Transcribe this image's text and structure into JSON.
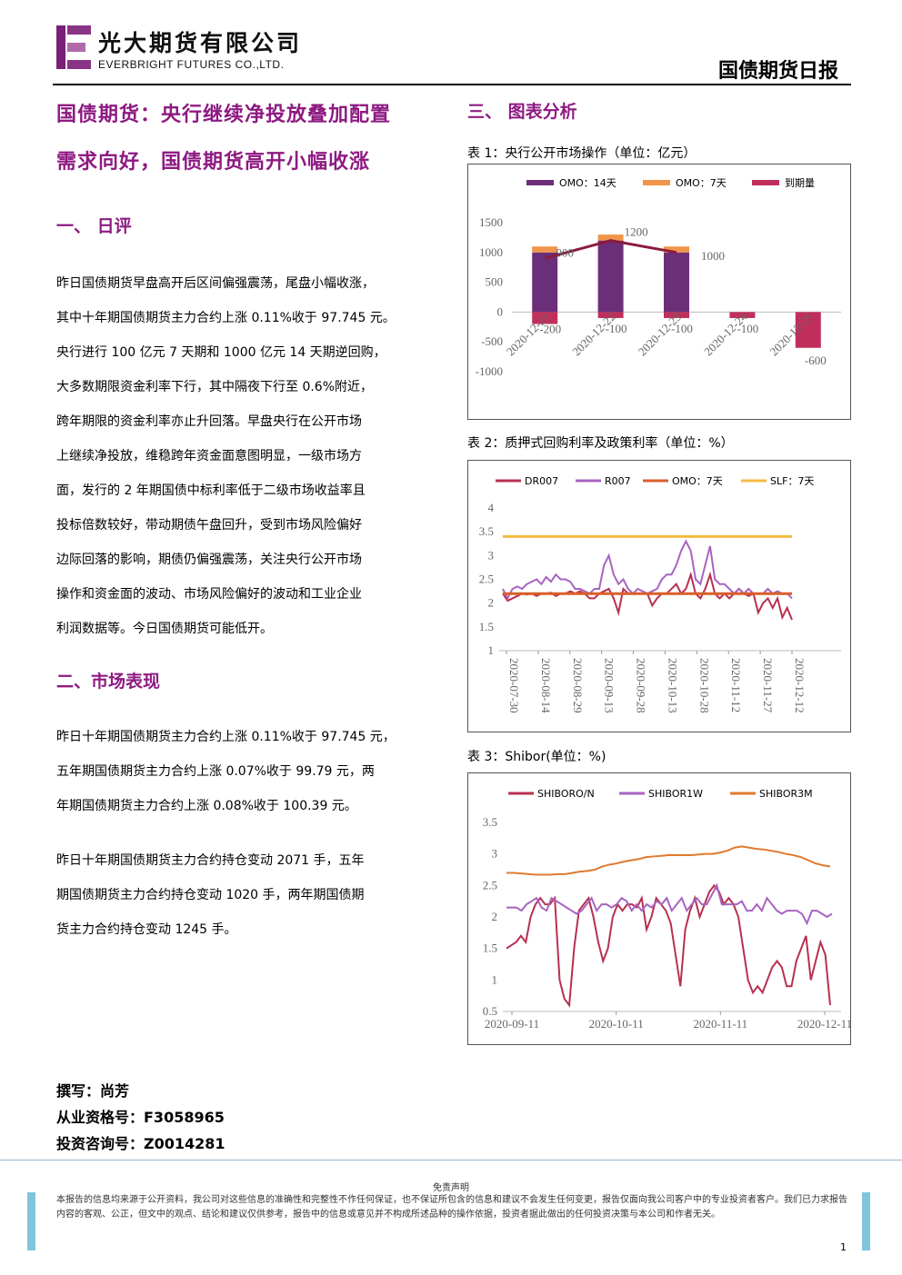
{
  "header": {
    "company_cn": "光大期货有限公司",
    "company_en": "EVERBRIGHT FUTURES CO.,LTD.",
    "report_title": "国债期货日报"
  },
  "headline": {
    "line1": "国债期货：央行继续净投放叠加配置",
    "line2": "需求向好，国债期货高开小幅收涨"
  },
  "section1": {
    "title": "一、   日评",
    "lines": [
      "昨日国债期货早盘高开后区间偏强震荡，尾盘小幅收涨，",
      "其中十年期国债期货主力合约上涨 0.11%收于 97.745 元。",
      "央行进行 100 亿元 7 天期和 1000 亿元 14 天期逆回购，",
      "大多数期限资金利率下行，其中隔夜下行至 0.6%附近，",
      "跨年期限的资金利率亦止升回落。早盘央行在公开市场",
      "上继续净投放，维稳跨年资金面意图明显，一级市场方",
      "面，发行的 2 年期国债中标利率低于二级市场收益率且",
      "投标倍数较好，带动期债午盘回升，受到市场风险偏好",
      "边际回落的影响，期债仍偏强震荡，关注央行公开市场",
      "操作和资金面的波动、市场风险偏好的波动和工业企业",
      "利润数据等。今日国债期货可能低开。"
    ]
  },
  "section2": {
    "title": "二、市场表现",
    "para1": [
      "昨日十年期国债期货主力合约上涨 0.11%收于 97.745 元，",
      "五年期国债期货主力合约上涨 0.07%收于 99.79 元，两",
      "年期国债期货主力合约上涨 0.08%收于 100.39 元。"
    ],
    "para2": [
      "昨日十年期国债期货主力合约持仓变动 2071 手，五年",
      "期国债期货主力合约持仓变动 1020 手，两年期国债期",
      "货主力合约持仓变动 1245 手。"
    ]
  },
  "section3": {
    "title": "三、   图表分析"
  },
  "captions": {
    "c1": "表 1：央行公开市场操作（单位：亿元）",
    "c2": "表 2：质押式回购利率及政策利率（单位：%）",
    "c3": "表 3：Shibor(单位：%)"
  },
  "authors": {
    "writer": "撰写：尚芳",
    "qual": "从业资格号：F3058965",
    "consult": "投资咨询号：Z0014281"
  },
  "footer": {
    "disclaimer_title": "免责声明",
    "disclaimer_text": "本报告的信息均来源于公开资料，我公司对这些信息的准确性和完整性不作任何保证，也不保证所包含的信息和建议不会发生任何变更，报告仅面向我公司客户中的专业投资者客户。我们已力求报告内容的客观、公正，但文中的观点、结论和建议仅供参考，报告中的信息或意见并不构成所述品种的操作依据，投资者据此做出的任何投资决策与本公司和作者无关。",
    "page": "1"
  },
  "colors": {
    "accent": "#8e1a82",
    "omo14": "#6b2f7a",
    "omo7": "#f0954a",
    "maturity": "#c02f5b",
    "net": "#8b1a3c",
    "dr007": "#b8304f",
    "r007": "#a864c0",
    "omo7line": "#d95f2b",
    "slf": "#f4b942",
    "shibor_on": "#b8304f",
    "shibor_1w": "#a864c0",
    "shibor_3m": "#e07a2e"
  },
  "chart_data": [
    {
      "type": "bar",
      "categories": [
        "2020-12-21",
        "2020-12-22",
        "2020-12-23",
        "2020-12-24",
        "2020-12-25"
      ],
      "series": [
        {
          "name": "OMO：14天",
          "values": [
            1000,
            1200,
            1000,
            0,
            0
          ]
        },
        {
          "name": "OMO：7天",
          "values": [
            100,
            100,
            100,
            0,
            0
          ]
        },
        {
          "name": "到期量",
          "values": [
            -200,
            -100,
            -100,
            -100,
            -600
          ]
        }
      ],
      "line_labels": [
        "900",
        "1200",
        "1000",
        "-200",
        "-100",
        "-100",
        "-100",
        "-600"
      ],
      "yticks": [
        "1500",
        "1000",
        "500",
        "0",
        "-500",
        "-1000"
      ],
      "ylim": [
        -1000,
        1500
      ]
    },
    {
      "type": "line",
      "x_ticks": [
        "2020-07-30",
        "2020-08-14",
        "2020-08-29",
        "2020-09-13",
        "2020-09-28",
        "2020-10-13",
        "2020-10-28",
        "2020-11-12",
        "2020-11-27",
        "2020-12-12"
      ],
      "yticks": [
        "4",
        "3.5",
        "3",
        "2.5",
        "2",
        "1.5",
        "1"
      ],
      "ylim": [
        1,
        4
      ],
      "series": [
        {
          "name": "DR007",
          "values": [
            2.2,
            2.05,
            2.1,
            2.15,
            2.2,
            2.18,
            2.2,
            2.15,
            2.2,
            2.2,
            2.22,
            2.15,
            2.2,
            2.2,
            2.25,
            2.2,
            2.25,
            2.2,
            2.1,
            2.1,
            2.2,
            2.25,
            2.3,
            2.1,
            1.8,
            2.3,
            2.2,
            2.2,
            2.2,
            2.2,
            2.2,
            1.95,
            2.1,
            2.2,
            2.2,
            2.3,
            2.4,
            2.2,
            2.3,
            2.6,
            2.2,
            2.1,
            2.3,
            2.6,
            2.2,
            2.1,
            2.2,
            2.1,
            2.2,
            2.3,
            2.2,
            2.15,
            2.2,
            1.8,
            2.0,
            2.1,
            1.9,
            2.1,
            1.7,
            1.9,
            1.65
          ]
        },
        {
          "name": "R007",
          "values": [
            2.3,
            2.1,
            2.3,
            2.35,
            2.3,
            2.4,
            2.45,
            2.5,
            2.4,
            2.55,
            2.45,
            2.6,
            2.5,
            2.5,
            2.45,
            2.3,
            2.3,
            2.25,
            2.2,
            2.3,
            2.3,
            2.8,
            3.0,
            2.6,
            2.4,
            2.5,
            2.3,
            2.2,
            2.3,
            2.25,
            2.2,
            2.25,
            2.3,
            2.5,
            2.6,
            2.6,
            2.8,
            3.1,
            3.3,
            3.1,
            2.5,
            2.4,
            2.8,
            3.2,
            2.5,
            2.4,
            2.4,
            2.3,
            2.2,
            2.3,
            2.2,
            2.3,
            2.2,
            2.2,
            2.2,
            2.3,
            2.2,
            2.25,
            2.2,
            2.2,
            2.1
          ]
        },
        {
          "name": "OMO：7天",
          "values": [
            2.2,
            2.2
          ]
        },
        {
          "name": "SLF：7天",
          "values": [
            3.4,
            3.4
          ]
        }
      ]
    },
    {
      "type": "line",
      "x_ticks": [
        "2020-09-11",
        "2020-10-11",
        "2020-11-11",
        "2020-12-11"
      ],
      "yticks": [
        "3.5",
        "3",
        "2.5",
        "2",
        "1.5",
        "1",
        "0.5"
      ],
      "ylim": [
        0.5,
        3.5
      ],
      "series": [
        {
          "name": "SHIBORO/N",
          "values": [
            1.5,
            1.55,
            1.6,
            1.7,
            1.6,
            2.0,
            2.2,
            2.3,
            2.2,
            2.2,
            2.3,
            1.0,
            0.7,
            0.6,
            1.5,
            2.1,
            2.2,
            2.3,
            2.0,
            1.6,
            1.3,
            1.5,
            2.0,
            2.2,
            2.1,
            2.2,
            2.2,
            2.15,
            2.3,
            1.8,
            2.0,
            2.3,
            2.2,
            2.1,
            1.9,
            1.4,
            0.9,
            1.8,
            2.1,
            2.3,
            2.0,
            2.2,
            2.4,
            2.5,
            2.4,
            2.2,
            2.3,
            2.2,
            2.0,
            1.5,
            1.0,
            0.8,
            0.9,
            0.8,
            1.0,
            1.2,
            1.3,
            1.2,
            0.9,
            0.9,
            1.3,
            1.5,
            1.7,
            1.0,
            1.3,
            1.6,
            1.4,
            0.6
          ]
        },
        {
          "name": "SHIBOR1W",
          "values": [
            2.15,
            2.15,
            2.15,
            2.1,
            2.2,
            2.25,
            2.3,
            2.15,
            2.1,
            2.3,
            2.25,
            2.2,
            2.15,
            2.1,
            2.05,
            2.1,
            2.2,
            2.3,
            2.1,
            2.2,
            2.2,
            2.15,
            2.2,
            2.3,
            2.25,
            2.1,
            2.2,
            2.1,
            2.2,
            2.15,
            2.25,
            2.2,
            2.3,
            2.1,
            2.2,
            2.3,
            2.1,
            2.2,
            2.3,
            2.2,
            2.2,
            2.35,
            2.5,
            2.2,
            2.2,
            2.2,
            2.2,
            2.25,
            2.1,
            2.1,
            2.2,
            2.1,
            2.3,
            2.2,
            2.1,
            2.05,
            2.1,
            2.1,
            2.1,
            2.05,
            1.9,
            2.1,
            2.1,
            2.05,
            2.0,
            2.05
          ]
        },
        {
          "name": "SHIBOR3M",
          "values": [
            2.7,
            2.7,
            2.69,
            2.68,
            2.67,
            2.67,
            2.67,
            2.68,
            2.68,
            2.7,
            2.72,
            2.73,
            2.75,
            2.8,
            2.83,
            2.85,
            2.88,
            2.9,
            2.92,
            2.95,
            2.96,
            2.97,
            2.98,
            2.98,
            2.98,
            2.98,
            2.99,
            3.0,
            3.0,
            3.02,
            3.05,
            3.1,
            3.12,
            3.1,
            3.08,
            3.07,
            3.05,
            3.03,
            3.0,
            2.98,
            2.95,
            2.9,
            2.85,
            2.82,
            2.8
          ]
        }
      ]
    }
  ]
}
